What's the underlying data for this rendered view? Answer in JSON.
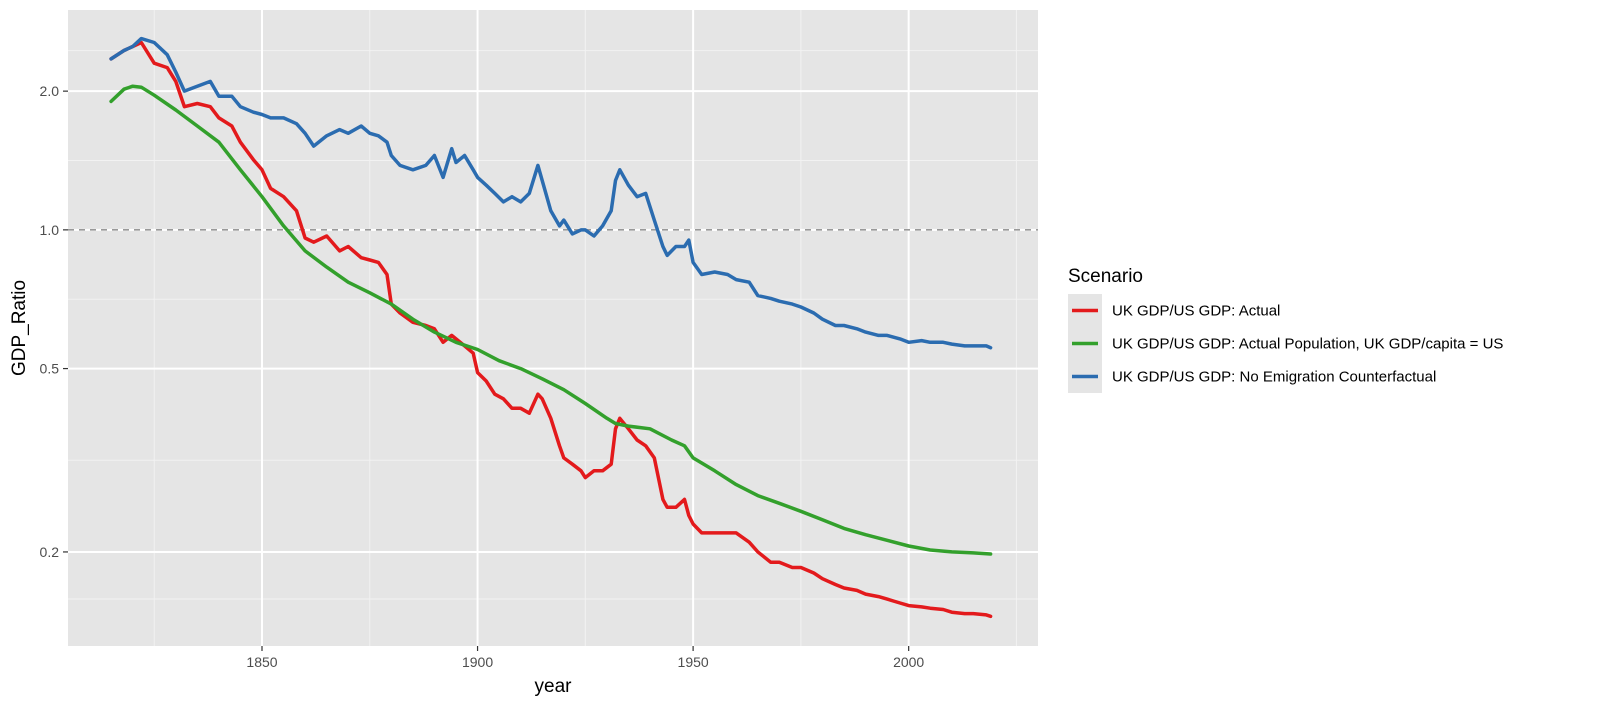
{
  "chart_data": {
    "type": "line",
    "xlabel": "year",
    "ylabel": "GDP_Ratio",
    "xlim": [
      1805,
      2030
    ],
    "ylim": [
      0.125,
      3.0
    ],
    "y_scale": "log",
    "x_ticks": [
      1850,
      1900,
      1950,
      2000
    ],
    "x_tick_labels": [
      "1850",
      "1900",
      "1950",
      "2000"
    ],
    "y_ticks": [
      0.2,
      0.5,
      1.0,
      2.0
    ],
    "y_tick_labels": [
      "0.2",
      "0.5",
      "1.0",
      "2.0"
    ],
    "reference_line": {
      "y": 1.0,
      "style": "dashed",
      "color": "#999999"
    },
    "grid": true,
    "panel_color": "#e5e5e5",
    "legend": {
      "title": "Scenario",
      "placement": "right"
    },
    "series": [
      {
        "name": "UK GDP/US GDP: Actual",
        "color": "#e31a1c",
        "x": [
          1815,
          1818,
          1820,
          1822,
          1825,
          1828,
          1830,
          1832,
          1835,
          1838,
          1840,
          1843,
          1845,
          1848,
          1850,
          1852,
          1855,
          1858,
          1860,
          1862,
          1865,
          1868,
          1870,
          1873,
          1875,
          1877,
          1879,
          1880,
          1882,
          1885,
          1888,
          1890,
          1892,
          1894,
          1895,
          1897,
          1899,
          1900,
          1902,
          1904,
          1906,
          1908,
          1910,
          1912,
          1914,
          1915,
          1917,
          1919,
          1920,
          1922,
          1924,
          1925,
          1927,
          1929,
          1931,
          1932,
          1933,
          1935,
          1937,
          1939,
          1941,
          1943,
          1944,
          1946,
          1948,
          1949,
          1950,
          1952,
          1955,
          1958,
          1960,
          1963,
          1965,
          1968,
          1970,
          1973,
          1975,
          1978,
          1980,
          1983,
          1985,
          1988,
          1990,
          1993,
          1995,
          1998,
          2000,
          2003,
          2005,
          2008,
          2010,
          2013,
          2015,
          2018,
          2019
        ],
        "values": [
          2.35,
          2.45,
          2.5,
          2.55,
          2.3,
          2.25,
          2.1,
          1.85,
          1.88,
          1.85,
          1.75,
          1.68,
          1.55,
          1.42,
          1.35,
          1.23,
          1.18,
          1.1,
          0.96,
          0.94,
          0.97,
          0.9,
          0.92,
          0.87,
          0.86,
          0.85,
          0.8,
          0.69,
          0.66,
          0.63,
          0.62,
          0.61,
          0.57,
          0.59,
          0.58,
          0.56,
          0.54,
          0.49,
          0.47,
          0.44,
          0.43,
          0.41,
          0.41,
          0.4,
          0.44,
          0.43,
          0.39,
          0.34,
          0.32,
          0.31,
          0.3,
          0.29,
          0.3,
          0.3,
          0.31,
          0.37,
          0.39,
          0.37,
          0.35,
          0.34,
          0.32,
          0.26,
          0.25,
          0.25,
          0.26,
          0.24,
          0.23,
          0.22,
          0.22,
          0.22,
          0.22,
          0.21,
          0.2,
          0.19,
          0.19,
          0.185,
          0.185,
          0.18,
          0.175,
          0.17,
          0.167,
          0.165,
          0.162,
          0.16,
          0.158,
          0.155,
          0.153,
          0.152,
          0.151,
          0.15,
          0.148,
          0.147,
          0.147,
          0.146,
          0.145
        ]
      },
      {
        "name": "UK GDP/US GDP: Actual Population, UK GDP/capita = US",
        "color": "#33a02c",
        "x": [
          1815,
          1818,
          1820,
          1822,
          1825,
          1830,
          1835,
          1840,
          1845,
          1850,
          1855,
          1860,
          1865,
          1870,
          1875,
          1880,
          1885,
          1890,
          1895,
          1900,
          1905,
          1910,
          1915,
          1920,
          1925,
          1930,
          1932,
          1935,
          1940,
          1945,
          1948,
          1950,
          1955,
          1960,
          1965,
          1970,
          1975,
          1980,
          1985,
          1990,
          1995,
          2000,
          2005,
          2010,
          2015,
          2019
        ],
        "values": [
          1.9,
          2.02,
          2.05,
          2.04,
          1.96,
          1.82,
          1.68,
          1.55,
          1.35,
          1.18,
          1.02,
          0.9,
          0.83,
          0.77,
          0.73,
          0.69,
          0.64,
          0.6,
          0.57,
          0.55,
          0.52,
          0.5,
          0.475,
          0.45,
          0.42,
          0.39,
          0.38,
          0.375,
          0.37,
          0.35,
          0.34,
          0.32,
          0.3,
          0.28,
          0.265,
          0.255,
          0.245,
          0.235,
          0.225,
          0.218,
          0.212,
          0.206,
          0.202,
          0.2,
          0.199,
          0.198
        ]
      },
      {
        "name": "UK GDP/US GDP: No Emigration Counterfactual",
        "color": "#2b6cb0",
        "x": [
          1815,
          1818,
          1820,
          1822,
          1825,
          1828,
          1830,
          1832,
          1835,
          1838,
          1840,
          1843,
          1845,
          1848,
          1850,
          1852,
          1855,
          1858,
          1860,
          1862,
          1865,
          1868,
          1870,
          1873,
          1875,
          1877,
          1879,
          1880,
          1882,
          1885,
          1888,
          1890,
          1892,
          1894,
          1895,
          1897,
          1899,
          1900,
          1902,
          1904,
          1906,
          1908,
          1910,
          1912,
          1914,
          1915,
          1917,
          1919,
          1920,
          1922,
          1924,
          1925,
          1927,
          1929,
          1931,
          1932,
          1933,
          1935,
          1937,
          1939,
          1941,
          1943,
          1944,
          1946,
          1948,
          1949,
          1950,
          1952,
          1955,
          1958,
          1960,
          1963,
          1965,
          1968,
          1970,
          1973,
          1975,
          1978,
          1980,
          1983,
          1985,
          1988,
          1990,
          1993,
          1995,
          1998,
          2000,
          2003,
          2005,
          2008,
          2010,
          2013,
          2015,
          2018,
          2019
        ],
        "values": [
          2.35,
          2.45,
          2.5,
          2.6,
          2.55,
          2.4,
          2.2,
          2.0,
          2.05,
          2.1,
          1.95,
          1.95,
          1.85,
          1.8,
          1.78,
          1.75,
          1.75,
          1.7,
          1.62,
          1.52,
          1.6,
          1.65,
          1.62,
          1.68,
          1.62,
          1.6,
          1.55,
          1.45,
          1.38,
          1.35,
          1.38,
          1.45,
          1.3,
          1.5,
          1.4,
          1.45,
          1.35,
          1.3,
          1.25,
          1.2,
          1.15,
          1.18,
          1.15,
          1.2,
          1.38,
          1.28,
          1.1,
          1.02,
          1.05,
          0.98,
          1.0,
          1.0,
          0.97,
          1.02,
          1.1,
          1.28,
          1.35,
          1.25,
          1.18,
          1.2,
          1.05,
          0.92,
          0.88,
          0.92,
          0.92,
          0.95,
          0.85,
          0.8,
          0.81,
          0.8,
          0.78,
          0.77,
          0.72,
          0.71,
          0.7,
          0.69,
          0.68,
          0.66,
          0.64,
          0.62,
          0.62,
          0.61,
          0.6,
          0.59,
          0.59,
          0.58,
          0.57,
          0.575,
          0.57,
          0.57,
          0.565,
          0.56,
          0.56,
          0.56,
          0.555
        ]
      }
    ]
  }
}
